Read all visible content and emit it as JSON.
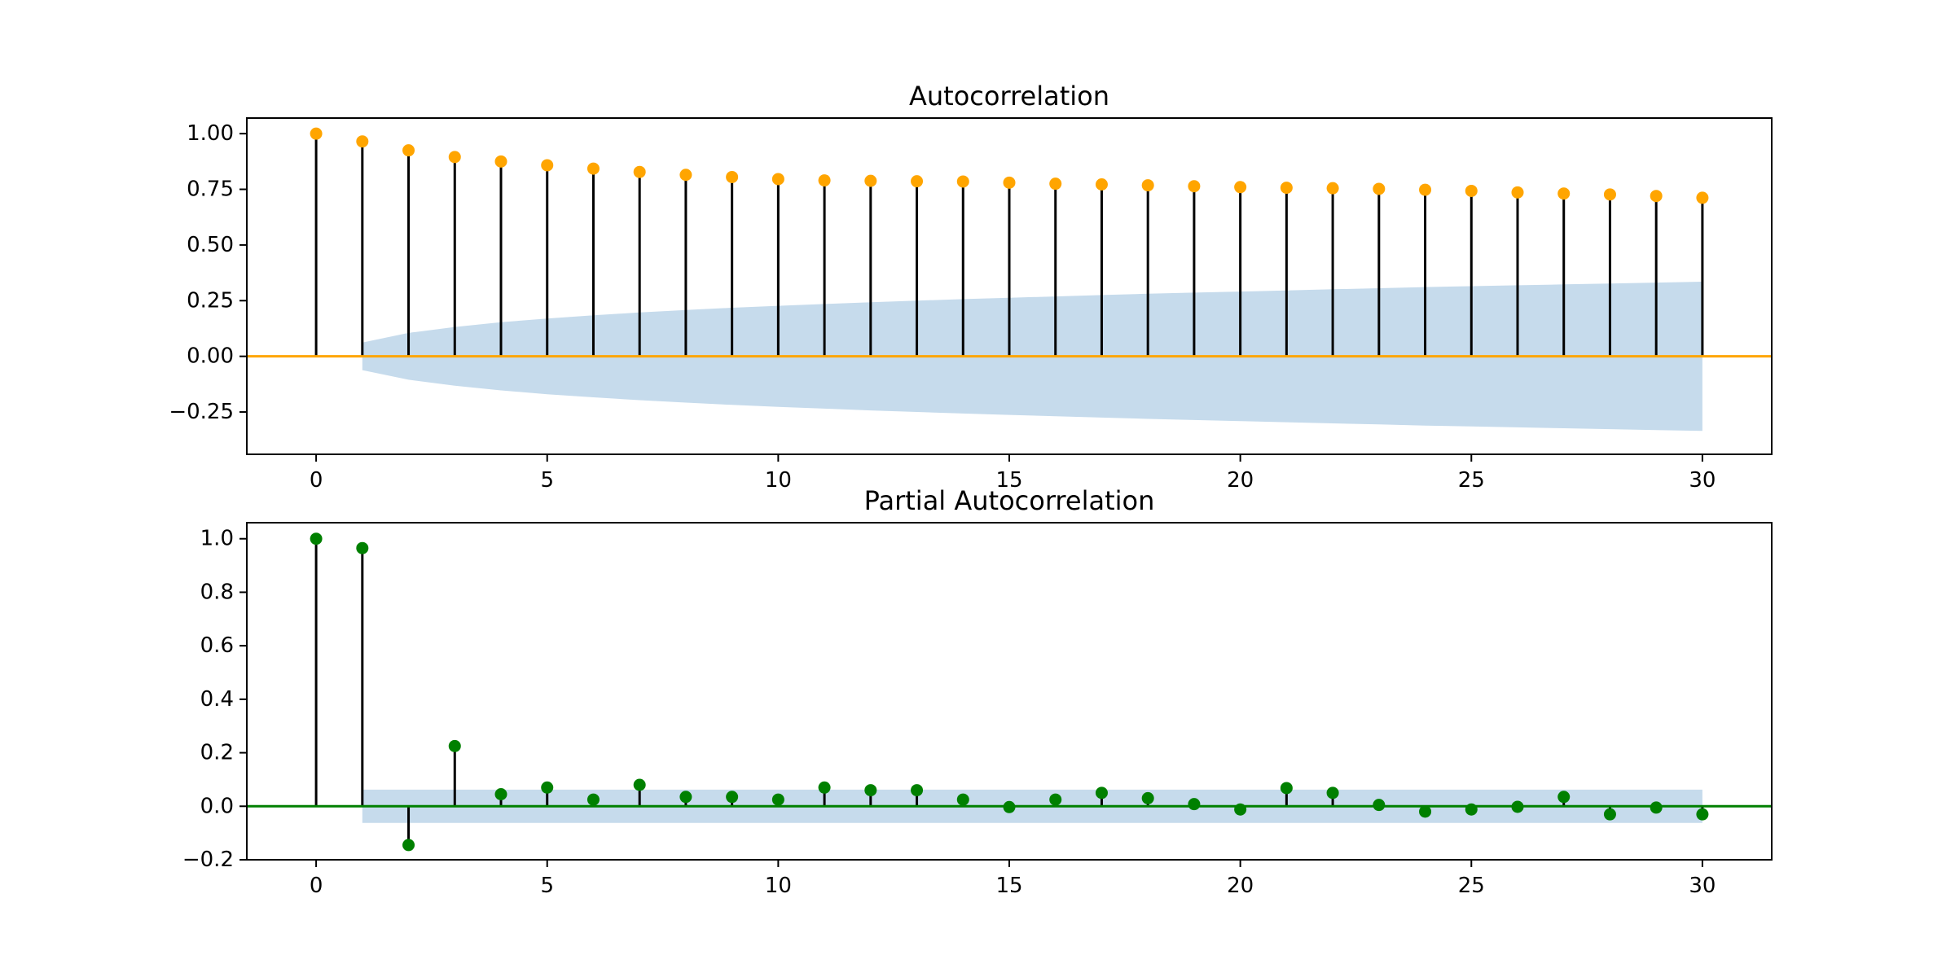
{
  "chart_data": [
    {
      "type": "stem",
      "title": "Autocorrelation",
      "xlabel": "",
      "ylabel": "",
      "xlim": [
        -1.5,
        31.5
      ],
      "ylim": [
        -0.44,
        1.07
      ],
      "x_ticks": [
        "0",
        "5",
        "10",
        "15",
        "20",
        "25",
        "30"
      ],
      "y_ticks": [
        "1.00",
        "0.75",
        "0.50",
        "0.25",
        "0.00",
        "−0.25"
      ],
      "grid": false,
      "marker_color": "#ffa500",
      "stem_color": "#000000",
      "baseline_color": "#ffa500",
      "band_color": "#c6dbec",
      "lags": [
        0,
        1,
        2,
        3,
        4,
        5,
        6,
        7,
        8,
        9,
        10,
        11,
        12,
        13,
        14,
        15,
        16,
        17,
        18,
        19,
        20,
        21,
        22,
        23,
        24,
        25,
        26,
        27,
        28,
        29,
        30
      ],
      "values": [
        1.0,
        0.965,
        0.925,
        0.895,
        0.875,
        0.858,
        0.843,
        0.828,
        0.815,
        0.805,
        0.796,
        0.79,
        0.788,
        0.786,
        0.785,
        0.78,
        0.775,
        0.772,
        0.768,
        0.764,
        0.76,
        0.757,
        0.755,
        0.752,
        0.748,
        0.743,
        0.736,
        0.731,
        0.727,
        0.72,
        0.712
      ],
      "confidence_band": [
        null,
        0.062,
        0.105,
        0.132,
        0.153,
        0.17,
        0.184,
        0.197,
        0.208,
        0.218,
        0.227,
        0.235,
        0.243,
        0.25,
        0.257,
        0.263,
        0.269,
        0.275,
        0.281,
        0.286,
        0.291,
        0.296,
        0.301,
        0.306,
        0.311,
        0.315,
        0.319,
        0.323,
        0.327,
        0.331,
        0.335
      ]
    },
    {
      "type": "stem",
      "title": "Partial Autocorrelation",
      "xlabel": "",
      "ylabel": "",
      "xlim": [
        -1.5,
        31.5
      ],
      "ylim": [
        -0.2,
        1.06
      ],
      "x_ticks": [
        "0",
        "5",
        "10",
        "15",
        "20",
        "25",
        "30"
      ],
      "y_ticks": [
        "1.0",
        "0.8",
        "0.6",
        "0.4",
        "0.2",
        "0.0",
        "−0.2"
      ],
      "grid": false,
      "marker_color": "#008000",
      "stem_color": "#000000",
      "baseline_color": "#008000",
      "band_color": "#c6dbec",
      "lags": [
        0,
        1,
        2,
        3,
        4,
        5,
        6,
        7,
        8,
        9,
        10,
        11,
        12,
        13,
        14,
        15,
        16,
        17,
        18,
        19,
        20,
        21,
        22,
        23,
        24,
        25,
        26,
        27,
        28,
        29,
        30
      ],
      "values": [
        1.0,
        0.965,
        -0.145,
        0.225,
        0.045,
        0.07,
        0.025,
        0.08,
        0.035,
        0.035,
        0.025,
        0.07,
        0.06,
        0.06,
        0.025,
        -0.003,
        0.025,
        0.05,
        0.03,
        0.008,
        -0.012,
        0.068,
        0.05,
        0.005,
        -0.02,
        -0.012,
        -0.002,
        0.035,
        -0.03,
        -0.005,
        -0.03
      ],
      "confidence_band": [
        null,
        0.062,
        0.062,
        0.062,
        0.062,
        0.062,
        0.062,
        0.062,
        0.062,
        0.062,
        0.062,
        0.062,
        0.062,
        0.062,
        0.062,
        0.062,
        0.062,
        0.062,
        0.062,
        0.062,
        0.062,
        0.062,
        0.062,
        0.062,
        0.062,
        0.062,
        0.062,
        0.062,
        0.062,
        0.062,
        0.062
      ]
    }
  ]
}
